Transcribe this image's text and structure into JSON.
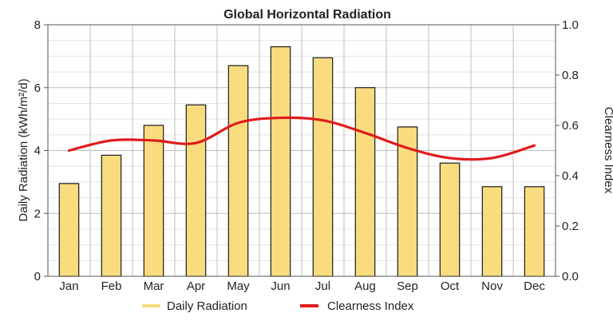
{
  "chart_data": {
    "type": "bar",
    "title": "Global Horizontal Radiation",
    "categories": [
      "Jan",
      "Feb",
      "Mar",
      "Apr",
      "May",
      "Jun",
      "Jul",
      "Aug",
      "Sep",
      "Oct",
      "Nov",
      "Dec"
    ],
    "series": [
      {
        "name": "Daily Radiation",
        "type": "bar",
        "axis": "left",
        "color": "#f9dc7e",
        "values": [
          2.95,
          3.85,
          4.8,
          5.45,
          6.7,
          7.3,
          6.95,
          6.0,
          4.75,
          3.6,
          2.85,
          2.85
        ]
      },
      {
        "name": "Clearness Index",
        "type": "line",
        "axis": "right",
        "color": "#e01b1b",
        "values": [
          0.5,
          0.54,
          0.54,
          0.53,
          0.61,
          0.63,
          0.62,
          0.57,
          0.51,
          0.47,
          0.47,
          0.52
        ]
      }
    ],
    "ylabel": "Daily Radiation (kWh/m²/d)",
    "y2label": "Clearness Index",
    "ylim": [
      0,
      8
    ],
    "y2lim": [
      0,
      1.0
    ],
    "yticks": [
      "0",
      "2",
      "4",
      "6",
      "8"
    ],
    "y2ticks": [
      "0.0",
      "0.2",
      "0.4",
      "0.6",
      "0.8",
      "1.0"
    ],
    "grid": true,
    "legend_position": "bottom"
  }
}
